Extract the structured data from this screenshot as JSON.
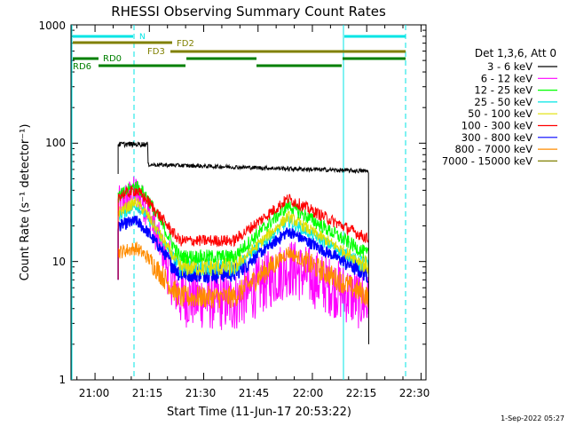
{
  "chart_data": {
    "type": "line",
    "title": "RHESSI Observing Summary Count Rates",
    "xlabel": "Start Time (11-Jun-17 20:53:22)",
    "ylabel": "Count Rate (s⁻¹ detector⁻¹)",
    "yscale": "log",
    "ylim": [
      1,
      1000
    ],
    "xlim_minutes_after_start": [
      0,
      98
    ],
    "x_tick_labels": [
      "21:00",
      "21:15",
      "21:30",
      "21:45",
      "22:00",
      "22:15",
      "22:30"
    ],
    "y_tick_labels": [
      "1",
      "10",
      "100",
      "1000"
    ],
    "legend_title": "Det 1,3,6, Att 0",
    "legend_position": "right",
    "series": [
      {
        "name": "3 - 6 keV",
        "color": "#000000",
        "values_at_times": {
          "x": [
            13,
            18,
            21,
            30,
            45,
            60,
            85
          ],
          "y": [
            98,
            100,
            102,
            67,
            64,
            61,
            58
          ]
        }
      },
      {
        "name": "6 - 12 keV",
        "color": "#ff00ff",
        "values_at_times": {
          "x": [
            13,
            18,
            21,
            30,
            45,
            60,
            85
          ],
          "y": [
            30,
            38,
            28,
            5,
            4.5,
            9,
            4
          ]
        }
      },
      {
        "name": "12 - 25 keV",
        "color": "#00ff00",
        "values_at_times": {
          "x": [
            13,
            18,
            21,
            30,
            45,
            60,
            85
          ],
          "y": [
            35,
            44,
            35,
            11,
            11,
            30,
            10
          ]
        }
      },
      {
        "name": "25 - 50 keV",
        "color": "#00e5e5",
        "values_at_times": {
          "x": [
            13,
            18,
            21,
            30,
            45,
            60,
            85
          ],
          "y": [
            24,
            30,
            24,
            9,
            9,
            22,
            8
          ]
        }
      },
      {
        "name": "50 - 100 keV",
        "color": "#e0e000",
        "values_at_times": {
          "x": [
            13,
            18,
            21,
            30,
            45,
            60,
            85
          ],
          "y": [
            26,
            32,
            25,
            9,
            9,
            24,
            8
          ]
        }
      },
      {
        "name": "100 - 300 keV",
        "color": "#ff0000",
        "values_at_times": {
          "x": [
            13,
            18,
            21,
            30,
            45,
            60,
            85
          ],
          "y": [
            36,
            40,
            33,
            15,
            15,
            34,
            14
          ]
        }
      },
      {
        "name": "300 - 800 keV",
        "color": "#0000ff",
        "values_at_times": {
          "x": [
            13,
            18,
            21,
            30,
            45,
            60,
            85
          ],
          "y": [
            20,
            22,
            18,
            8,
            8,
            18,
            7
          ]
        }
      },
      {
        "name": "800 - 7000 keV",
        "color": "#ff8c00",
        "values_at_times": {
          "x": [
            13,
            18,
            21,
            30,
            45,
            60,
            85
          ],
          "y": [
            12,
            13,
            11,
            5,
            5,
            12,
            4.5
          ]
        }
      },
      {
        "name": "7000 - 15000 keV",
        "color": "#808000",
        "values_at_times": {
          "x": [
            13,
            18,
            21,
            30,
            45,
            60,
            85
          ],
          "y": [
            1,
            1,
            1,
            1,
            1,
            1,
            1
          ]
        }
      }
    ],
    "annotations": [
      "N",
      "FD2",
      "FD3",
      "RD0",
      "RD6"
    ],
    "timestamp": "1-Sep-2022 05:27"
  }
}
